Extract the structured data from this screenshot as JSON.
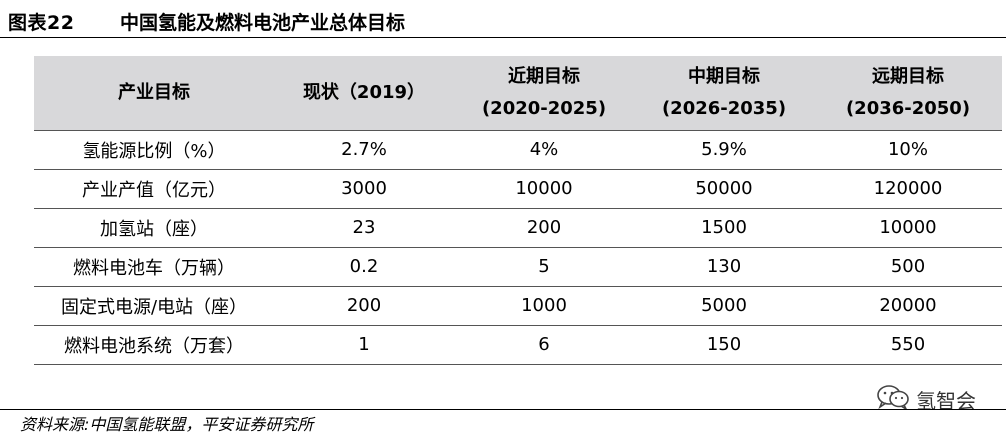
{
  "figure": {
    "number": "图表22",
    "title": "中国氢能及燃料电池产业总体目标"
  },
  "table": {
    "headers": [
      {
        "line1": "产业目标",
        "line2": ""
      },
      {
        "line1": "现状（2019）",
        "line2": ""
      },
      {
        "line1": "近期目标",
        "line2": "(2020-2025)"
      },
      {
        "line1": "中期目标",
        "line2": "(2026-2035)"
      },
      {
        "line1": "远期目标",
        "line2": "(2036-2050)"
      }
    ],
    "rows": [
      [
        "氢能源比例（%）",
        "2.7%",
        "4%",
        "5.9%",
        "10%"
      ],
      [
        "产业产值（亿元）",
        "3000",
        "10000",
        "50000",
        "120000"
      ],
      [
        "加氢站（座）",
        "23",
        "200",
        "1500",
        "10000"
      ],
      [
        "燃料电池车（万辆）",
        "0.2",
        "5",
        "130",
        "500"
      ],
      [
        "固定式电源/电站（座）",
        "200",
        "1000",
        "5000",
        "20000"
      ],
      [
        "燃料电池系统（万套）",
        "1",
        "6",
        "150",
        "550"
      ]
    ]
  },
  "footer": {
    "source": "资料来源:中国氢能联盟，平安证券研究所",
    "watermark": "氢智会",
    "watermark_icon": "wechat-icon"
  }
}
